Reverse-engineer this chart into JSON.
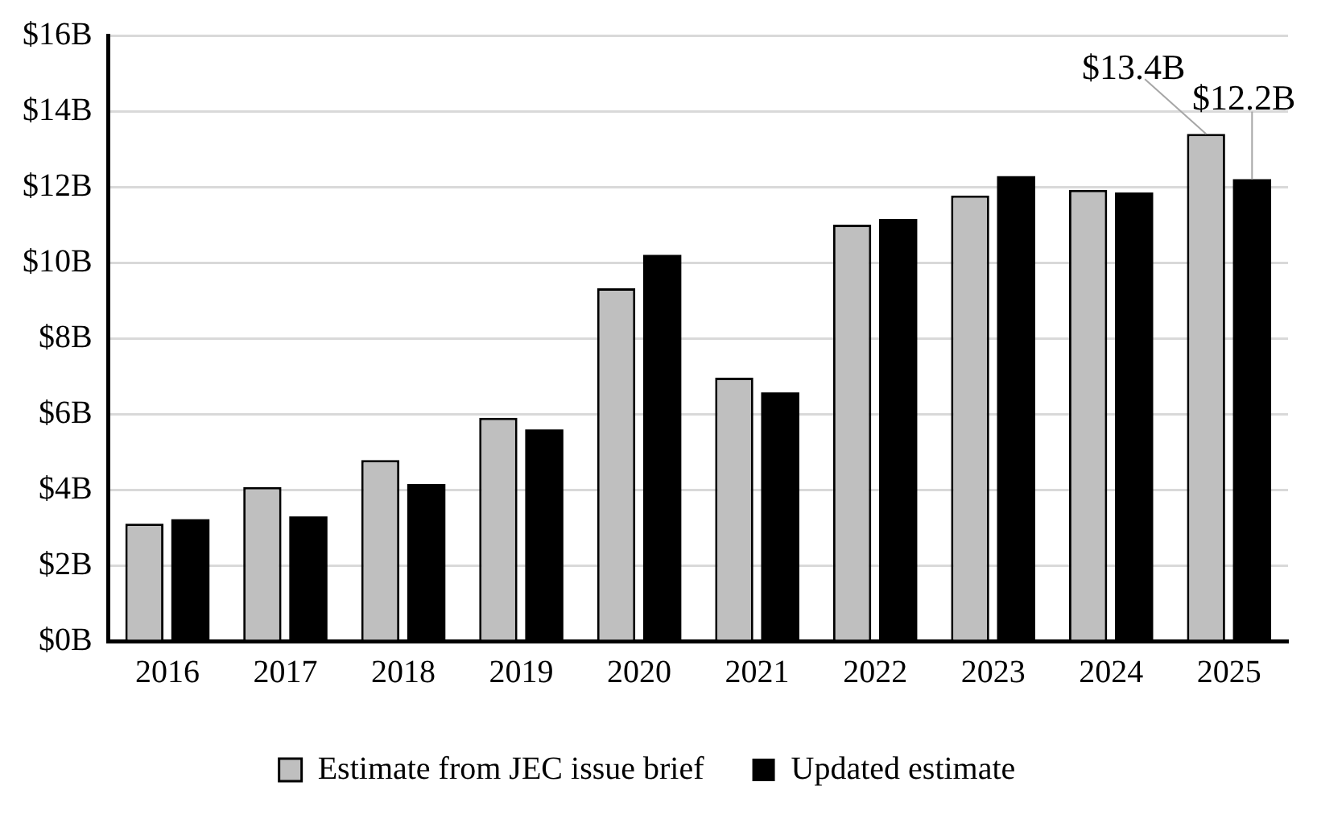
{
  "chart_data": {
    "type": "bar",
    "categories": [
      "2016",
      "2017",
      "2018",
      "2019",
      "2020",
      "2021",
      "2022",
      "2023",
      "2024",
      "2025"
    ],
    "series": [
      {
        "name": "Estimate from JEC issue brief",
        "color": "#bfbfbf",
        "values": [
          3.1,
          4.07,
          4.78,
          5.9,
          9.32,
          6.96,
          11.0,
          11.77,
          11.92,
          13.4
        ],
        "value_labels": [
          null,
          null,
          null,
          null,
          null,
          null,
          null,
          null,
          null,
          "$13.4B"
        ]
      },
      {
        "name": "Updated estimate",
        "color": "#000000",
        "values": [
          3.22,
          3.29,
          4.15,
          5.59,
          10.2,
          6.57,
          11.15,
          12.28,
          11.85,
          12.2
        ],
        "value_labels": [
          null,
          null,
          null,
          null,
          null,
          null,
          null,
          null,
          null,
          "$12.2B"
        ]
      }
    ],
    "ylim": [
      0,
      16
    ],
    "yticks": [
      {
        "value": 0,
        "label": "$0B"
      },
      {
        "value": 2,
        "label": "$2B"
      },
      {
        "value": 4,
        "label": "$4B"
      },
      {
        "value": 6,
        "label": "$6B"
      },
      {
        "value": 8,
        "label": "$8B"
      },
      {
        "value": 10,
        "label": "$10B"
      },
      {
        "value": 12,
        "label": "$12B"
      },
      {
        "value": 14,
        "label": "$14B"
      },
      {
        "value": 16,
        "label": "$16B"
      }
    ],
    "grid": "y",
    "legend": "bottom"
  }
}
